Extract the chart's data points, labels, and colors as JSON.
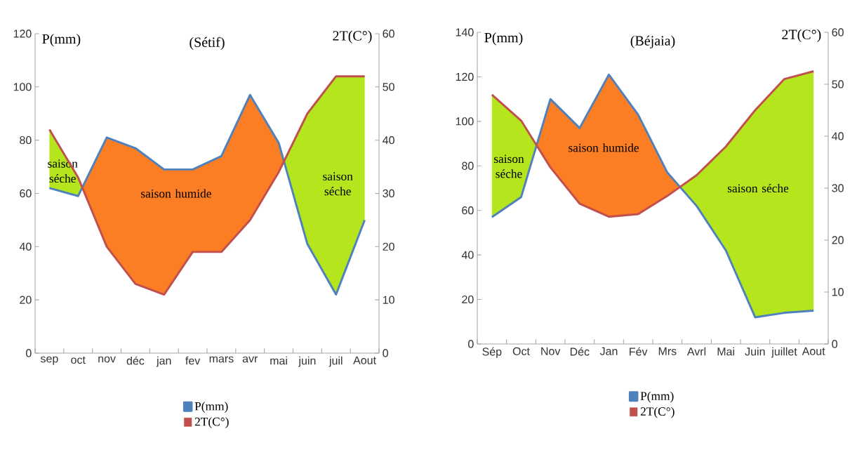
{
  "chart_data": [
    {
      "type": "line",
      "title": "(Sétif)",
      "ylabel": "P(mm)",
      "y2label": "2T(C°)",
      "categories": [
        "sep",
        "oct",
        "nov",
        "déc",
        "jan",
        "fev",
        "mars",
        "avr",
        "mai",
        "juin",
        "juil",
        "Aout"
      ],
      "series": [
        {
          "name": "P(mm)",
          "color": "#4f81bd",
          "values": [
            62,
            59,
            81,
            77,
            69,
            69,
            74,
            97,
            79,
            41,
            22,
            50
          ]
        },
        {
          "name": "2T(C°)",
          "color": "#c0504d",
          "axis": "y2",
          "values": [
            42,
            33,
            20,
            13,
            11,
            19,
            19,
            25,
            34,
            45,
            52,
            52
          ]
        }
      ],
      "ylim": [
        0,
        120
      ],
      "yticks": [
        0,
        20,
        40,
        60,
        80,
        100,
        120
      ],
      "y2lim": [
        0,
        60
      ],
      "y2ticks": [
        0,
        10,
        20,
        30,
        40,
        50,
        60
      ],
      "legend": "bottom",
      "annotations": [
        "saison séche",
        "saison humide",
        "saison séche"
      ]
    },
    {
      "type": "line",
      "title": "(Béjaia)",
      "ylabel": "P(mm)",
      "y2label": "2T(C°)",
      "categories": [
        "Sép",
        "Oct",
        "Nov",
        "Déc",
        "Jan",
        "Fév",
        "Mrs",
        "Avrl",
        "Mai",
        "Juin",
        "juillet",
        "Aout"
      ],
      "series": [
        {
          "name": "P(mm)",
          "color": "#4f81bd",
          "values": [
            57,
            66,
            110,
            97,
            121,
            103,
            77,
            62,
            42,
            12,
            14,
            15
          ]
        },
        {
          "name": "2T(C°)",
          "color": "#c0504d",
          "axis": "y2",
          "values": [
            48,
            43,
            34,
            27,
            24.5,
            25,
            28.5,
            32.5,
            38,
            45,
            51,
            52.5
          ]
        }
      ],
      "ylim": [
        0,
        140
      ],
      "yticks": [
        0,
        20,
        40,
        60,
        80,
        100,
        120,
        140
      ],
      "y2lim": [
        0,
        60
      ],
      "y2ticks": [
        0,
        10,
        20,
        30,
        40,
        50,
        60
      ],
      "legend": "bottom",
      "annotations": [
        "saison séche",
        "saison humide",
        "saison séche"
      ]
    }
  ]
}
